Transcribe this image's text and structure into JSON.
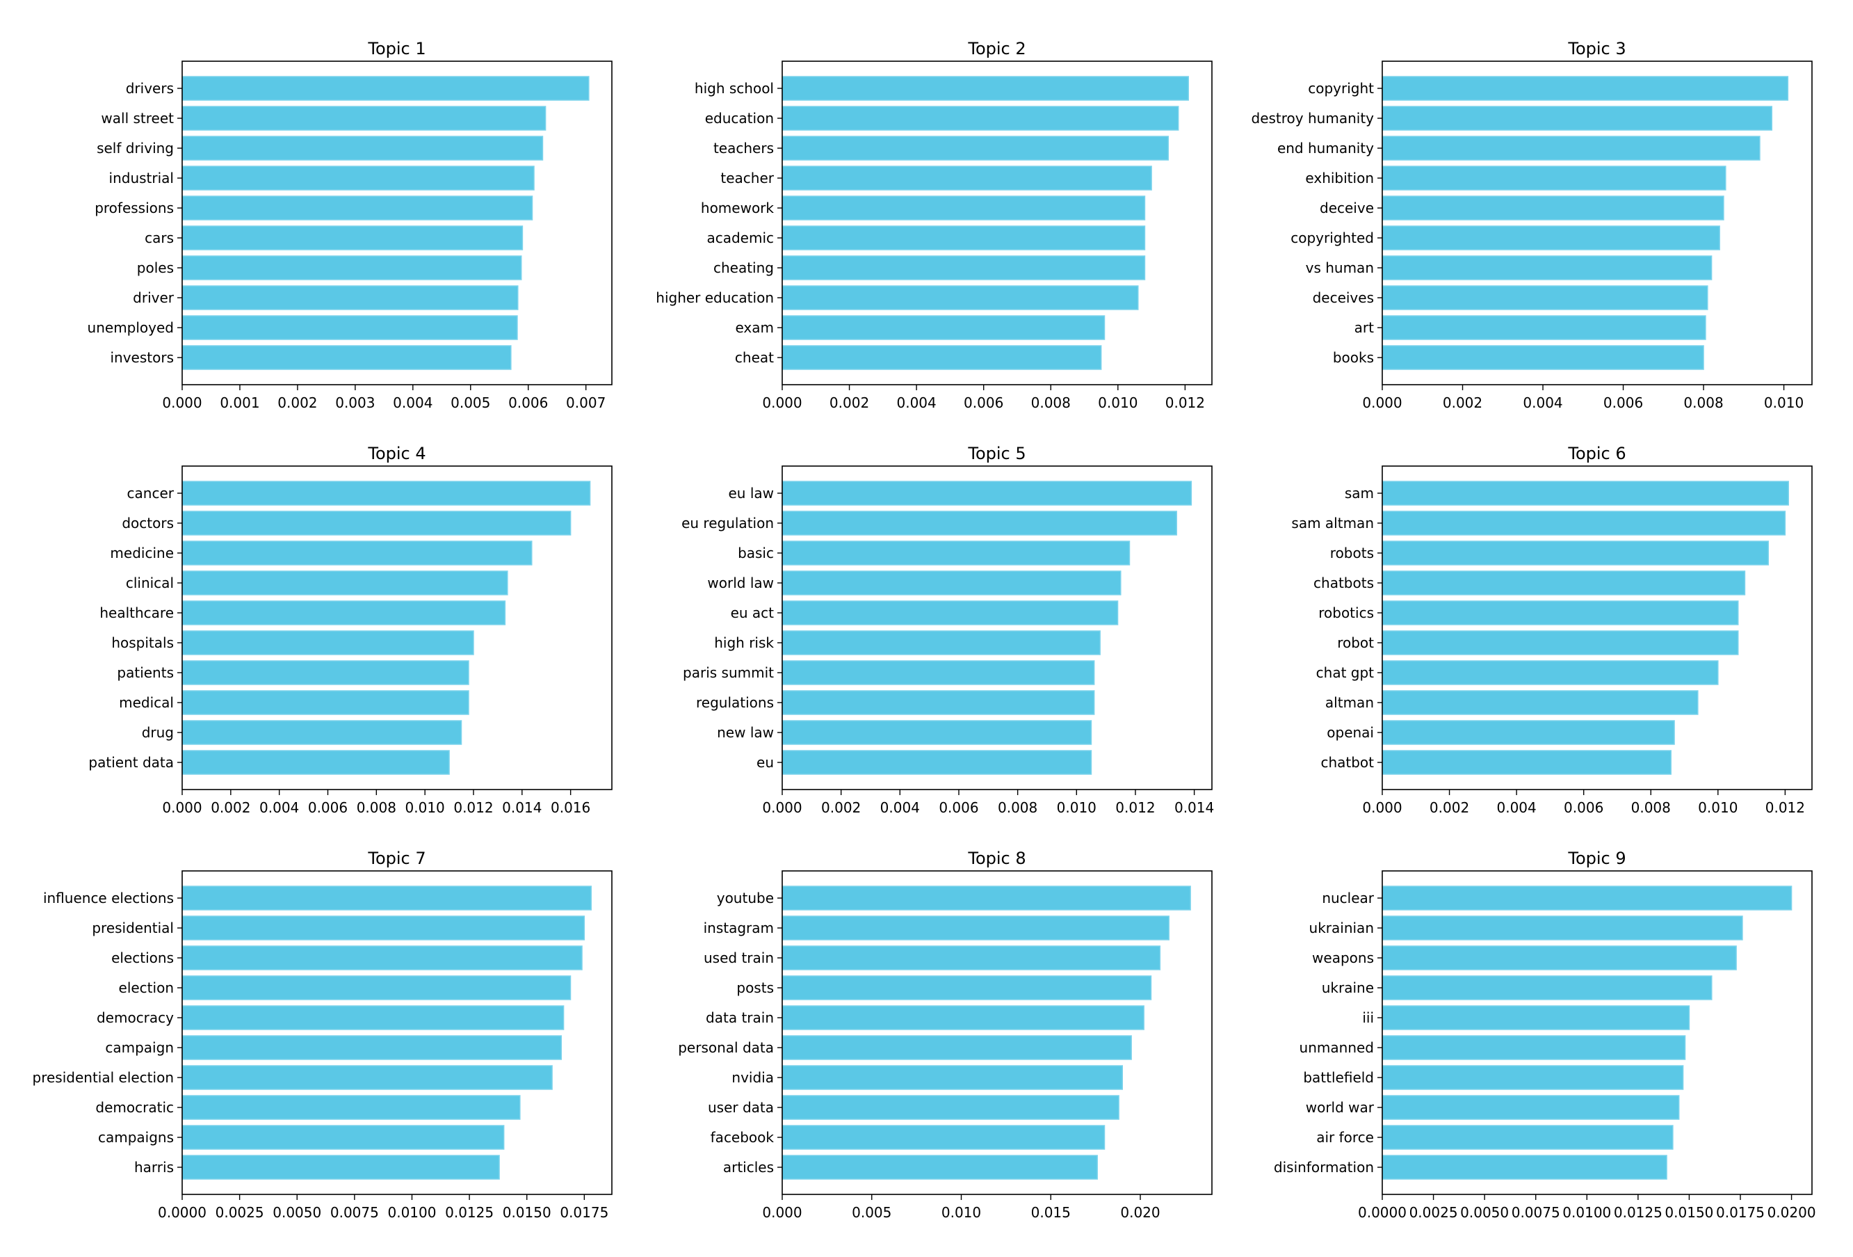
{
  "chart_data": [
    {
      "type": "bar",
      "orientation": "horizontal",
      "title": "Topic 1",
      "color": "#5bc8e6",
      "categories": [
        "drivers",
        "wall street",
        "self driving",
        "industrial",
        "professions",
        "cars",
        "poles",
        "driver",
        "unemployed",
        "investors"
      ],
      "values": [
        0.00705,
        0.0063,
        0.00625,
        0.0061,
        0.00607,
        0.0059,
        0.00588,
        0.00582,
        0.00581,
        0.0057
      ],
      "xlim": [
        0,
        0.00745
      ],
      "xticks": [
        0,
        0.001,
        0.002,
        0.003,
        0.004,
        0.005,
        0.006,
        0.007
      ],
      "xtick_labels": [
        "0.000",
        "0.001",
        "0.002",
        "0.003",
        "0.004",
        "0.005",
        "0.006",
        "0.007"
      ]
    },
    {
      "type": "bar",
      "orientation": "horizontal",
      "title": "Topic 2",
      "color": "#5bc8e6",
      "categories": [
        "high school",
        "education",
        "teachers",
        "teacher",
        "homework",
        "academic",
        "cheating",
        "higher education",
        "exam",
        "cheat"
      ],
      "values": [
        0.0121,
        0.0118,
        0.0115,
        0.011,
        0.0108,
        0.0108,
        0.0108,
        0.0106,
        0.0096,
        0.0095
      ],
      "xlim": [
        0,
        0.0128
      ],
      "xticks": [
        0,
        0.002,
        0.004,
        0.006,
        0.008,
        0.01,
        0.012
      ],
      "xtick_labels": [
        "0.000",
        "0.002",
        "0.004",
        "0.006",
        "0.008",
        "0.010",
        "0.012"
      ]
    },
    {
      "type": "bar",
      "orientation": "horizontal",
      "title": "Topic 3",
      "color": "#5bc8e6",
      "categories": [
        "copyright",
        "destroy humanity",
        "end humanity",
        "exhibition",
        "deceive",
        "copyrighted",
        "vs human",
        "deceives",
        "art",
        "books"
      ],
      "values": [
        0.0101,
        0.0097,
        0.0094,
        0.00855,
        0.0085,
        0.0084,
        0.0082,
        0.0081,
        0.00805,
        0.008
      ],
      "xlim": [
        0,
        0.0107
      ],
      "xticks": [
        0,
        0.002,
        0.004,
        0.006,
        0.008,
        0.01
      ],
      "xtick_labels": [
        "0.000",
        "0.002",
        "0.004",
        "0.006",
        "0.008",
        "0.010"
      ]
    },
    {
      "type": "bar",
      "orientation": "horizontal",
      "title": "Topic 4",
      "color": "#5bc8e6",
      "categories": [
        "cancer",
        "doctors",
        "medicine",
        "clinical",
        "healthcare",
        "hospitals",
        "patients",
        "medical",
        "drug",
        "patient data"
      ],
      "values": [
        0.0168,
        0.016,
        0.0144,
        0.0134,
        0.0133,
        0.012,
        0.0118,
        0.0118,
        0.0115,
        0.011
      ],
      "xlim": [
        0,
        0.0177
      ],
      "xticks": [
        0,
        0.002,
        0.004,
        0.006,
        0.008,
        0.01,
        0.012,
        0.014,
        0.016
      ],
      "xtick_labels": [
        "0.000",
        "0.002",
        "0.004",
        "0.006",
        "0.008",
        "0.010",
        "0.012",
        "0.014",
        "0.016"
      ]
    },
    {
      "type": "bar",
      "orientation": "horizontal",
      "title": "Topic 5",
      "color": "#5bc8e6",
      "categories": [
        "eu law",
        "eu regulation",
        "basic",
        "world law",
        "eu act",
        "high risk",
        "paris summit",
        "regulations",
        "new law",
        "eu"
      ],
      "values": [
        0.0139,
        0.0134,
        0.0118,
        0.0115,
        0.0114,
        0.0108,
        0.0106,
        0.0106,
        0.0105,
        0.0105
      ],
      "xlim": [
        0,
        0.0146
      ],
      "xticks": [
        0,
        0.002,
        0.004,
        0.006,
        0.008,
        0.01,
        0.012,
        0.014
      ],
      "xtick_labels": [
        "0.000",
        "0.002",
        "0.004",
        "0.006",
        "0.008",
        "0.010",
        "0.012",
        "0.014"
      ]
    },
    {
      "type": "bar",
      "orientation": "horizontal",
      "title": "Topic 6",
      "color": "#5bc8e6",
      "categories": [
        "sam",
        "sam altman",
        "robots",
        "chatbots",
        "robotics",
        "robot",
        "chat gpt",
        "altman",
        "openai",
        "chatbot"
      ],
      "values": [
        0.0121,
        0.012,
        0.0115,
        0.0108,
        0.0106,
        0.0106,
        0.01,
        0.0094,
        0.0087,
        0.0086
      ],
      "xlim": [
        0,
        0.0128
      ],
      "xticks": [
        0,
        0.002,
        0.004,
        0.006,
        0.008,
        0.01,
        0.012
      ],
      "xtick_labels": [
        "0.000",
        "0.002",
        "0.004",
        "0.006",
        "0.008",
        "0.010",
        "0.012"
      ]
    },
    {
      "type": "bar",
      "orientation": "horizontal",
      "title": "Topic 7",
      "color": "#5bc8e6",
      "categories": [
        "influence elections",
        "presidential",
        "elections",
        "election",
        "democracy",
        "campaign",
        "presidential election",
        "democratic",
        "campaigns",
        "harris"
      ],
      "values": [
        0.0178,
        0.0175,
        0.0174,
        0.0169,
        0.0166,
        0.0165,
        0.0161,
        0.0147,
        0.014,
        0.0138
      ],
      "xlim": [
        0,
        0.0187
      ],
      "xticks": [
        0,
        0.0025,
        0.005,
        0.0075,
        0.01,
        0.0125,
        0.015,
        0.0175
      ],
      "xtick_labels": [
        "0.0000",
        "0.0025",
        "0.0050",
        "0.0075",
        "0.0100",
        "0.0125",
        "0.0150",
        "0.0175"
      ]
    },
    {
      "type": "bar",
      "orientation": "horizontal",
      "title": "Topic 8",
      "color": "#5bc8e6",
      "categories": [
        "youtube",
        "instagram",
        "used train",
        "posts",
        "data train",
        "personal data",
        "nvidia",
        "user data",
        "facebook",
        "articles"
      ],
      "values": [
        0.0228,
        0.0216,
        0.0211,
        0.0206,
        0.0202,
        0.0195,
        0.019,
        0.0188,
        0.018,
        0.0176
      ],
      "xlim": [
        0,
        0.024
      ],
      "xticks": [
        0,
        0.005,
        0.01,
        0.015,
        0.02
      ],
      "xtick_labels": [
        "0.000",
        "0.005",
        "0.010",
        "0.015",
        "0.020"
      ]
    },
    {
      "type": "bar",
      "orientation": "horizontal",
      "title": "Topic 9",
      "color": "#5bc8e6",
      "categories": [
        "nuclear",
        "ukrainian",
        "weapons",
        "ukraine",
        "iii",
        "unmanned",
        "battlefield",
        "world war",
        "air force",
        "disinformation"
      ],
      "values": [
        0.02,
        0.0176,
        0.0173,
        0.0161,
        0.015,
        0.0148,
        0.0147,
        0.0145,
        0.0142,
        0.0139
      ],
      "xlim": [
        0,
        0.021
      ],
      "xticks": [
        0,
        0.0025,
        0.005,
        0.0075,
        0.01,
        0.0125,
        0.015,
        0.0175,
        0.02
      ],
      "xtick_labels": [
        "0.0000",
        "0.0025",
        "0.0050",
        "0.0075",
        "0.0100",
        "0.0125",
        "0.0150",
        "0.0175",
        "0.0200"
      ]
    }
  ]
}
